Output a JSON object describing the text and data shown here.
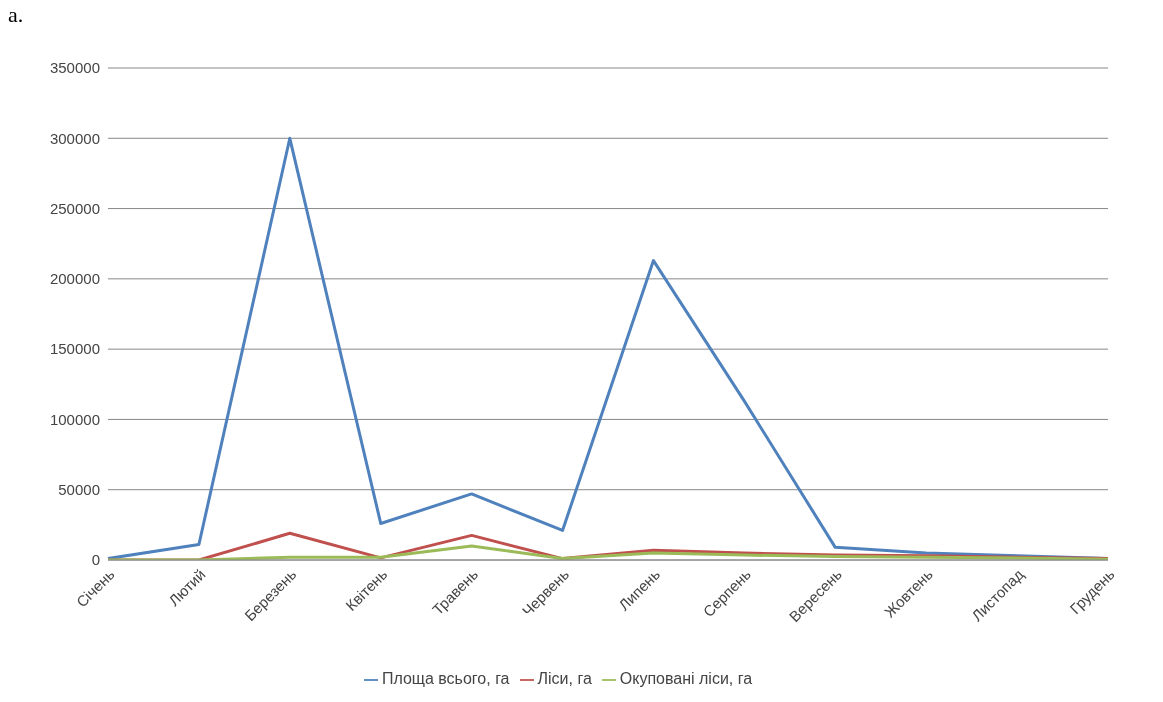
{
  "chart_data": {
    "type": "line",
    "annotations": [
      "a."
    ],
    "categories": [
      "Січень",
      "Лютий",
      "Березень",
      "Квітень",
      "Травень",
      "Червень",
      "Липень",
      "Серпень",
      "Вересень",
      "Жовтень",
      "Листопад",
      "Грудень"
    ],
    "series": [
      {
        "name": "Площа всього, га",
        "color": "#4f81bd",
        "values": [
          1000,
          11000,
          300000,
          26000,
          47000,
          21000,
          213000,
          113000,
          9000,
          5000,
          3000,
          1000
        ]
      },
      {
        "name": "Ліси, га",
        "color": "#c0504d",
        "values": [
          0,
          0,
          19000,
          1500,
          17500,
          1000,
          7000,
          5000,
          3500,
          3000,
          2000,
          1000
        ]
      },
      {
        "name": "Окуповані ліси, га",
        "color": "#9bbb59",
        "values": [
          0,
          0,
          2000,
          2000,
          10000,
          1000,
          5000,
          3500,
          2500,
          2000,
          1500,
          500
        ]
      }
    ],
    "ylim": [
      0,
      350000
    ],
    "yticks": [
      0,
      50000,
      100000,
      150000,
      200000,
      250000,
      300000,
      350000
    ],
    "grid": "y",
    "legend": "bottom",
    "marker": "none",
    "line_style": "solid"
  }
}
